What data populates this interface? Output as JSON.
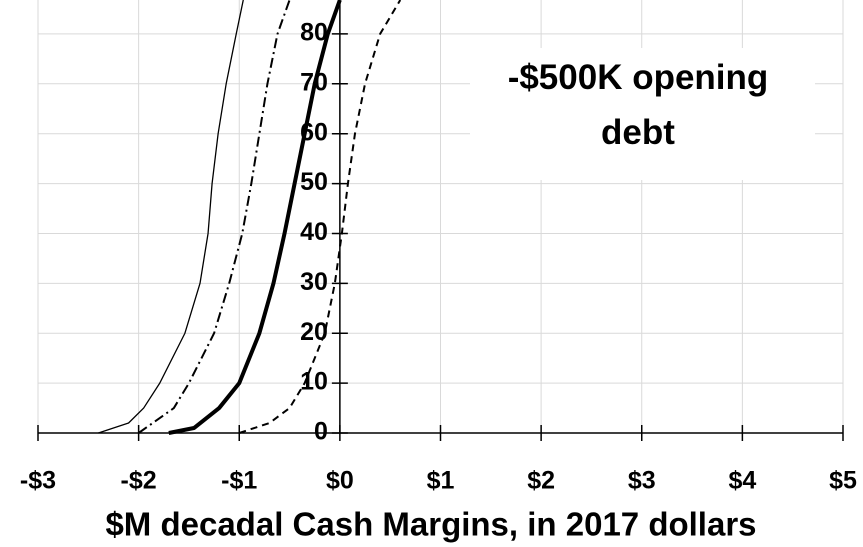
{
  "chart_data": {
    "type": "line",
    "annotation": [
      "-$500K opening debt"
    ],
    "xlabel": "$M decadal Cash Margins, in 2017 dollars",
    "xlim": [
      -3,
      5
    ],
    "ylim": [
      0,
      86.8
    ],
    "xticks": [
      {
        "value": -3,
        "label": "-$3"
      },
      {
        "value": -2,
        "label": "-$2"
      },
      {
        "value": -1,
        "label": "-$1"
      },
      {
        "value": 0,
        "label": "$0"
      },
      {
        "value": 1,
        "label": "$1"
      },
      {
        "value": 2,
        "label": "$2"
      },
      {
        "value": 3,
        "label": "$3"
      },
      {
        "value": 4,
        "label": "$4"
      },
      {
        "value": 5,
        "label": "$5"
      }
    ],
    "yticks": [
      0,
      10,
      20,
      30,
      40,
      50,
      60,
      70,
      80
    ],
    "grid": true,
    "series": [
      {
        "color": "#000000",
        "style": "thin",
        "x": [
          -2.4,
          -2.1,
          -1.95,
          -1.79,
          -1.54,
          -1.39,
          -1.31,
          -1.27,
          -1.21,
          -1.13,
          -1.03,
          -0.96
        ],
        "values": [
          0,
          2,
          5,
          10,
          20,
          30,
          40,
          50,
          60,
          70,
          80,
          86.8
        ]
      },
      {
        "color": "#000000",
        "style": "dashdot",
        "x": [
          -2.0,
          -1.65,
          -1.5,
          -1.25,
          -1.1,
          -0.97,
          -0.88,
          -0.8,
          -0.72,
          -0.62,
          -0.5
        ],
        "values": [
          0,
          5,
          10,
          20,
          30,
          40,
          50,
          60,
          70,
          80,
          86.8
        ]
      },
      {
        "color": "#000000",
        "style": "thick",
        "x": [
          -1.7,
          -1.45,
          -1.2,
          -1.0,
          -0.8,
          -0.66,
          -0.55,
          -0.45,
          -0.35,
          -0.25,
          -0.12,
          0.0
        ],
        "values": [
          0,
          1,
          5,
          10,
          20,
          30,
          40,
          50,
          60,
          70,
          80,
          86.8
        ]
      },
      {
        "color": "#000000",
        "style": "dashed",
        "x": [
          -1.0,
          -0.7,
          -0.5,
          -0.35,
          -0.15,
          -0.05,
          0.02,
          0.08,
          0.15,
          0.25,
          0.4,
          0.6
        ],
        "values": [
          0,
          2,
          5,
          10,
          20,
          30,
          40,
          50,
          60,
          70,
          80,
          86.8
        ]
      }
    ]
  }
}
